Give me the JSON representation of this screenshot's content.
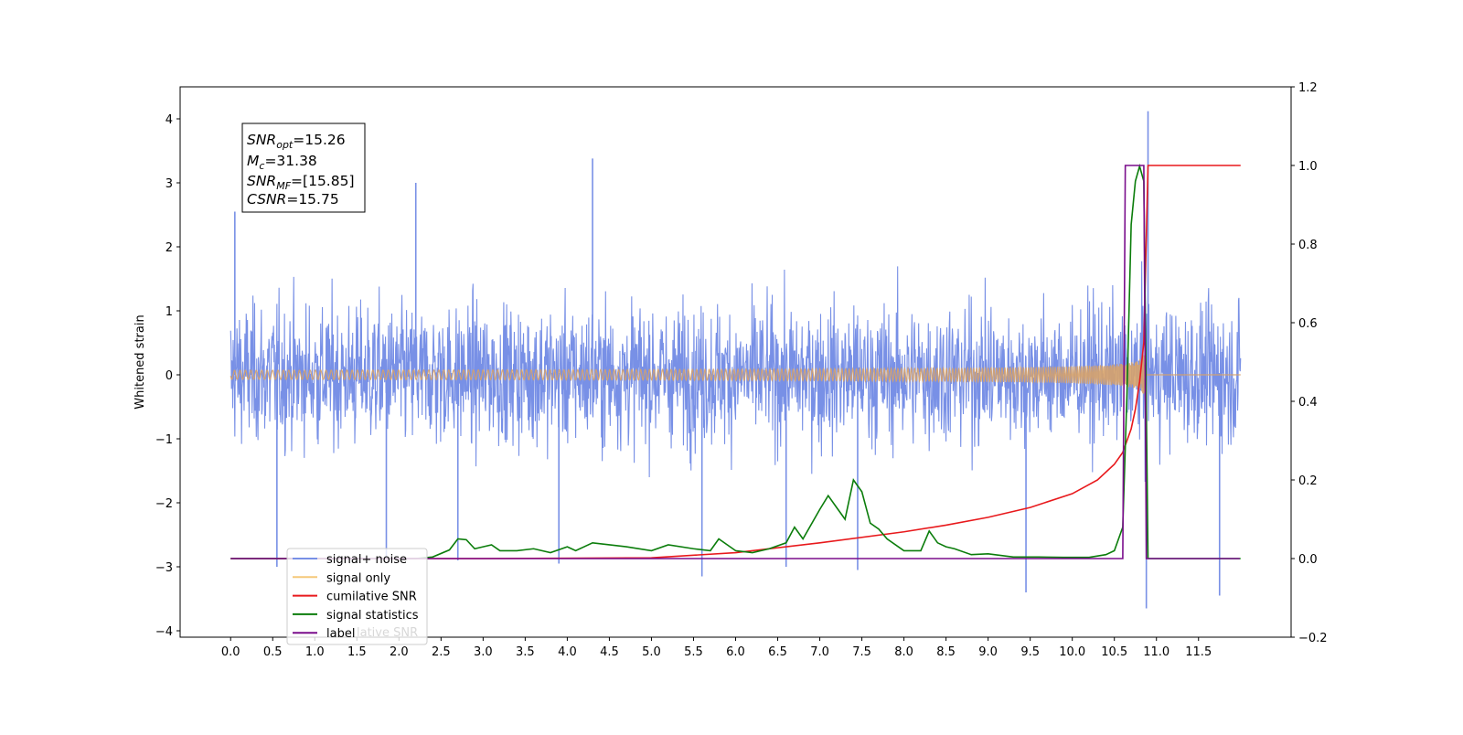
{
  "chart_data": {
    "type": "line",
    "title": "",
    "xlabel": "",
    "ylabel": "Whitened strain",
    "y2label": "",
    "xlim": [
      -0.6,
      12.6
    ],
    "ylim": [
      -4.1,
      4.5
    ],
    "y2lim": [
      -0.2,
      1.2
    ],
    "grid": false,
    "legend_placement": "lower-left",
    "x_ticks": [
      "0.0",
      "0.5",
      "1.0",
      "1.5",
      "2.0",
      "2.5",
      "3.0",
      "3.5",
      "4.0",
      "4.5",
      "5.0",
      "5.5",
      "6.0",
      "6.5",
      "7.0",
      "7.5",
      "8.0",
      "8.5",
      "9.0",
      "9.5",
      "10.0",
      "10.5",
      "11.0",
      "11.5"
    ],
    "y_ticks": [
      "4",
      "3",
      "2",
      "1",
      "0",
      "−1",
      "−2",
      "−3",
      "−4"
    ],
    "y2_ticks": [
      "1.2",
      "1.0",
      "0.8",
      "0.6",
      "0.4",
      "0.2",
      "0.0",
      "−0.2"
    ],
    "annotation": {
      "snr_opt": "=15.26",
      "mc": "=31.38",
      "snr_mf": "=[15.85]",
      "csnr": "=15.75"
    },
    "legend": [
      {
        "label": "signal+ noise",
        "color": "#7890e6"
      },
      {
        "label": "signal only",
        "color": "#f5c87a"
      },
      {
        "label": "cumilative SNR",
        "color": "#e8191c"
      },
      {
        "label": "signal statistics",
        "color": "#0b7d0b"
      },
      {
        "label": "label",
        "color": "#7a0d8c"
      }
    ],
    "legend_ghost_text": "lative SNR",
    "series": [
      {
        "name": "signal+ noise",
        "axis": "left",
        "color": "#7890e6",
        "x_range": [
          0.0,
          12.0
        ],
        "envelope_typical": [
          -1.7,
          1.7
        ],
        "extremes": [
          {
            "x": 0.05,
            "y": 2.55
          },
          {
            "x": 0.55,
            "y": -3.0
          },
          {
            "x": 1.85,
            "y": -2.85
          },
          {
            "x": 2.2,
            "y": 3.0
          },
          {
            "x": 2.7,
            "y": -2.9
          },
          {
            "x": 3.9,
            "y": -2.95
          },
          {
            "x": 4.3,
            "y": 3.38
          },
          {
            "x": 5.6,
            "y": -3.15
          },
          {
            "x": 6.6,
            "y": -3.0
          },
          {
            "x": 7.45,
            "y": -3.05
          },
          {
            "x": 9.45,
            "y": -3.4
          },
          {
            "x": 10.9,
            "y": 4.12
          },
          {
            "x": 10.88,
            "y": -3.65
          },
          {
            "x": 11.75,
            "y": -3.45
          }
        ]
      },
      {
        "name": "signal only",
        "axis": "left",
        "color": "#f5c87a",
        "x_range": [
          0.0,
          12.0
        ],
        "merger_time": 10.88,
        "peak_amplitude": 1.1
      },
      {
        "name": "cumilative SNR",
        "axis": "right",
        "color": "#e8191c",
        "x": [
          0.0,
          3.0,
          5.0,
          6.0,
          7.0,
          8.0,
          8.5,
          9.0,
          9.5,
          10.0,
          10.3,
          10.5,
          10.6,
          10.7,
          10.75,
          10.8,
          10.85,
          10.9,
          12.0
        ],
        "values": [
          0.0,
          0.0,
          0.002,
          0.015,
          0.04,
          0.068,
          0.085,
          0.105,
          0.13,
          0.165,
          0.2,
          0.24,
          0.27,
          0.33,
          0.38,
          0.45,
          0.55,
          1.0,
          1.0
        ]
      },
      {
        "name": "signal statistics",
        "axis": "right",
        "color": "#0b7d0b",
        "x": [
          0.0,
          2.2,
          2.4,
          2.6,
          2.7,
          2.8,
          2.9,
          3.0,
          3.1,
          3.2,
          3.4,
          3.6,
          3.8,
          4.0,
          4.1,
          4.3,
          4.5,
          4.7,
          5.0,
          5.2,
          5.5,
          5.7,
          5.8,
          6.0,
          6.2,
          6.4,
          6.6,
          6.7,
          6.8,
          7.0,
          7.1,
          7.2,
          7.3,
          7.4,
          7.5,
          7.6,
          7.7,
          7.8,
          8.0,
          8.2,
          8.3,
          8.4,
          8.5,
          8.6,
          8.8,
          9.0,
          9.3,
          9.6,
          9.9,
          10.2,
          10.4,
          10.5,
          10.6,
          10.65,
          10.7,
          10.75,
          10.8,
          10.85,
          10.9,
          12.0
        ],
        "values": [
          0.0,
          0.0,
          0.004,
          0.022,
          0.05,
          0.048,
          0.025,
          0.03,
          0.035,
          0.02,
          0.02,
          0.025,
          0.015,
          0.03,
          0.02,
          0.04,
          0.035,
          0.03,
          0.02,
          0.035,
          0.025,
          0.02,
          0.05,
          0.02,
          0.015,
          0.025,
          0.04,
          0.08,
          0.05,
          0.125,
          0.16,
          0.13,
          0.1,
          0.2,
          0.17,
          0.09,
          0.075,
          0.05,
          0.02,
          0.02,
          0.07,
          0.04,
          0.03,
          0.025,
          0.01,
          0.012,
          0.004,
          0.004,
          0.003,
          0.003,
          0.01,
          0.02,
          0.08,
          0.42,
          0.85,
          0.96,
          0.998,
          0.96,
          0.0,
          0.0
        ]
      },
      {
        "name": "label",
        "axis": "right",
        "color": "#7a0d8c",
        "x": [
          0.0,
          10.6,
          10.63,
          10.85,
          10.88,
          11.99
        ],
        "values": [
          0.0,
          0.0,
          1.0,
          1.0,
          0.0,
          0.0
        ]
      }
    ]
  }
}
